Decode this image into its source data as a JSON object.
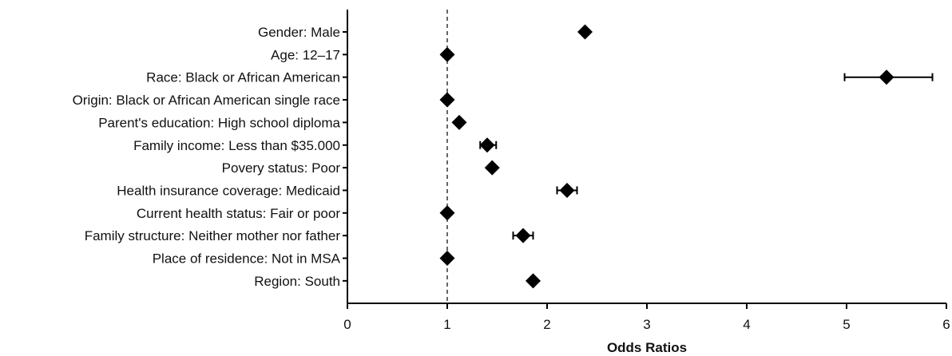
{
  "chart_data": {
    "type": "scatter",
    "subtype": "forest-plot",
    "title": "",
    "xlabel": "Odds Ratios",
    "ylabel": "",
    "xlim": [
      0,
      6
    ],
    "xticks": [
      "0",
      "1",
      "2",
      "3",
      "4",
      "5",
      "6"
    ],
    "reference_line": 1,
    "grid": false,
    "legend": "none",
    "marker": "diamond",
    "color": "#000000",
    "categories": [
      "Gender: Male",
      "Age: 12–17",
      "Race: Black or African American",
      "Origin: Black or African American single race",
      "Parent's education: High school diploma",
      "Family income: Less than $35.000",
      "Povery status: Poor",
      "Health insurance coverage: Medicaid",
      "Current health status: Fair or poor",
      "Family structure: Neither mother nor father",
      "Place of residence: Not in MSA",
      "Region: South"
    ],
    "values": [
      2.38,
      1.0,
      5.4,
      1.0,
      1.12,
      1.4,
      1.45,
      2.2,
      1.0,
      1.76,
      1.0,
      1.86
    ],
    "ci_low": [
      null,
      null,
      4.98,
      null,
      null,
      1.33,
      null,
      2.1,
      null,
      1.66,
      null,
      null
    ],
    "ci_high": [
      null,
      null,
      5.86,
      null,
      null,
      1.49,
      null,
      2.3,
      null,
      1.86,
      null,
      null
    ]
  }
}
